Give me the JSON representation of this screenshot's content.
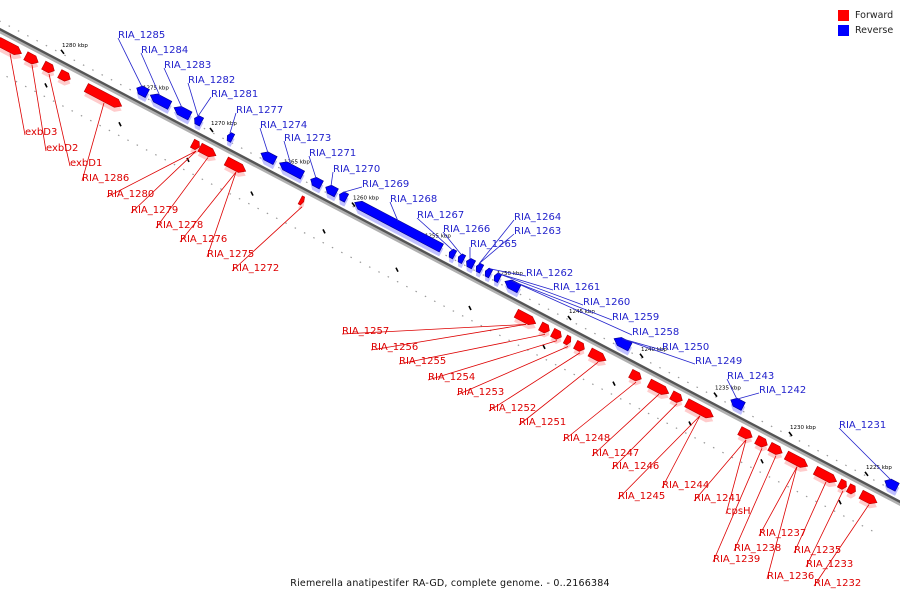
{
  "legend": {
    "forward_label": "Forward",
    "reverse_label": "Reverse",
    "forward_color": "#ff0000",
    "reverse_color": "#0000ff"
  },
  "caption": "Riemerella anatipestifer RA-GD, complete genome. - 0..2166384",
  "ticks": [
    "1280 kbp",
    "1275 kbp",
    "1270 kbp",
    "1265 kbp",
    "1260 kbp",
    "1255 kbp",
    "1250 kbp",
    "1245 kbp",
    "1240 kbp",
    "1235 kbp",
    "1230 kbp",
    "1225 kbp"
  ],
  "forward_genes": [
    "exbD3",
    "exbD2",
    "exbD1",
    "RIA_1286",
    "RIA_1280",
    "RIA_1279",
    "RIA_1278",
    "RIA_1276",
    "RIA_1275",
    "RIA_1272",
    "RIA_1257",
    "RIA_1256",
    "RIA_1255",
    "RIA_1254",
    "RIA_1253",
    "RIA_1252",
    "RIA_1251",
    "RIA_1248",
    "RIA_1247",
    "RIA_1246",
    "RIA_1245",
    "RIA_1244",
    "RIA_1241",
    "cpsH",
    "RIA_1239",
    "RIA_1238",
    "RIA_1237",
    "RIA_1236",
    "RIA_1235",
    "RIA_1233",
    "RIA_1232"
  ],
  "reverse_genes": [
    "RIA_1285",
    "RIA_1284",
    "RIA_1283",
    "RIA_1282",
    "RIA_1281",
    "RIA_1277",
    "RIA_1274",
    "RIA_1273",
    "RIA_1271",
    "RIA_1270",
    "RIA_1269",
    "RIA_1268",
    "RIA_1267",
    "RIA_1266",
    "RIA_1265",
    "RIA_1264",
    "RIA_1263",
    "RIA_1262",
    "RIA_1261",
    "RIA_1260",
    "RIA_1259",
    "RIA_1258",
    "RIA_1250",
    "RIA_1249",
    "RIA_1243",
    "RIA_1242",
    "RIA_1231"
  ]
}
